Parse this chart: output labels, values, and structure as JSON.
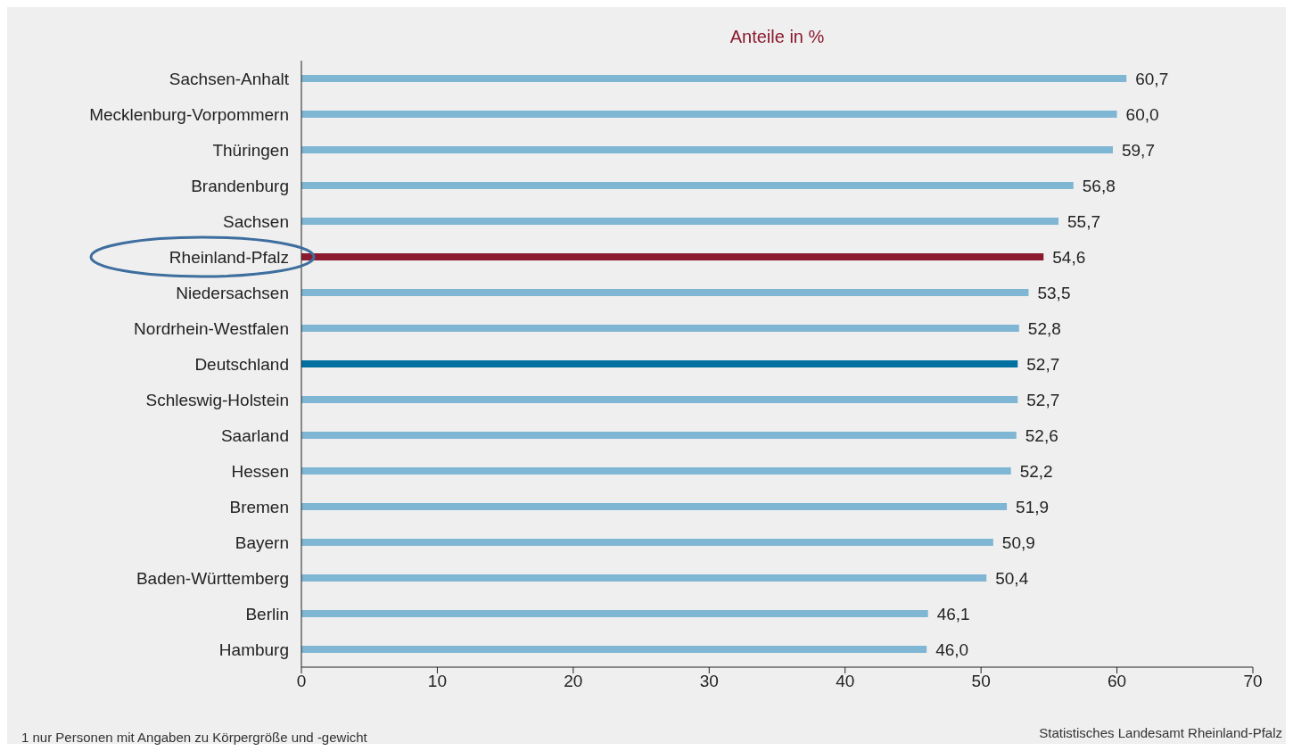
{
  "chart_data": {
    "type": "bar",
    "orientation": "horizontal",
    "title": "Anteile in %",
    "categories": [
      "Sachsen-Anhalt",
      "Mecklenburg-Vorpommern",
      "Thüringen",
      "Brandenburg",
      "Sachsen",
      "Rheinland-Pfalz",
      "Niedersachsen",
      "Nordrhein-Westfalen",
      "Deutschland",
      "Schleswig-Holstein",
      "Saarland",
      "Hessen",
      "Bremen",
      "Bayern",
      "Baden-Württemberg",
      "Berlin",
      "Hamburg"
    ],
    "values": [
      60.7,
      60.0,
      59.7,
      56.8,
      55.7,
      54.6,
      53.5,
      52.8,
      52.7,
      52.7,
      52.6,
      52.2,
      51.9,
      50.9,
      50.4,
      46.1,
      46.0
    ],
    "value_labels": [
      "60,7",
      "60,0",
      "59,7",
      "56,8",
      "55,7",
      "54,6",
      "53,5",
      "52,8",
      "52,7",
      "52,7",
      "52,6",
      "52,2",
      "51,9",
      "50,9",
      "50,4",
      "46,1",
      "46,0"
    ],
    "colors": [
      "#7fb6d3",
      "#7fb6d3",
      "#7fb6d3",
      "#7fb6d3",
      "#7fb6d3",
      "#8b1a2f",
      "#7fb6d3",
      "#7fb6d3",
      "#0070a0",
      "#7fb6d3",
      "#7fb6d3",
      "#7fb6d3",
      "#7fb6d3",
      "#7fb6d3",
      "#7fb6d3",
      "#7fb6d3",
      "#7fb6d3"
    ],
    "xlim": [
      0,
      70
    ],
    "xticks": [
      0,
      10,
      20,
      30,
      40,
      50,
      60,
      70
    ],
    "grid": false,
    "legend": false,
    "annotations": [
      "1 nur Personen mit Angaben zu Körpergröße und -gewicht",
      "Statistisches Landesamt Rheinland-Pfalz"
    ]
  }
}
